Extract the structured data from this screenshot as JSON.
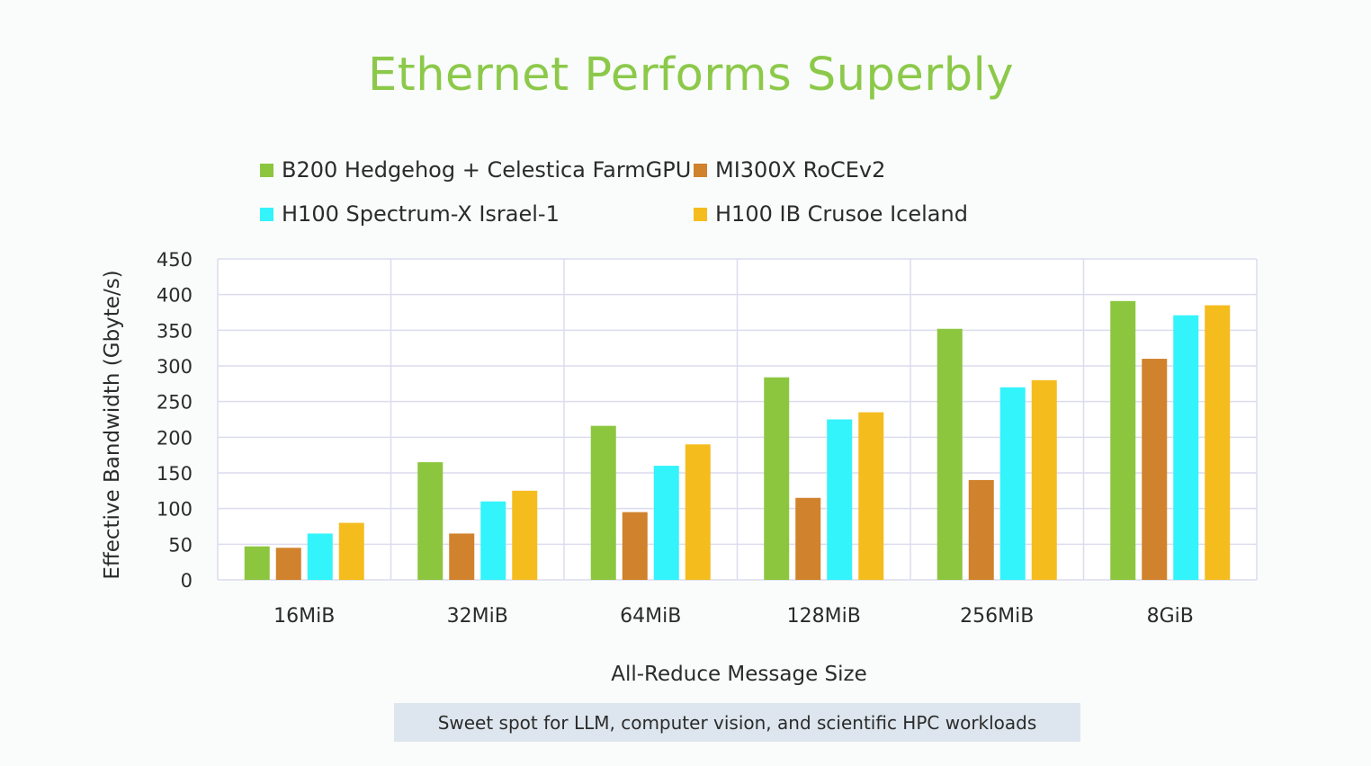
{
  "slide": {
    "title": "Ethernet Performs Superbly",
    "footnote": "Sweet spot for LLM, computer vision, and scientific HPC workloads"
  },
  "chart_data": {
    "type": "bar",
    "title": "",
    "xlabel": "All-Reduce Message Size",
    "ylabel": "Effective Bandwidth (Gbyte/s)",
    "ylim": [
      0,
      450
    ],
    "yticks": [
      0,
      50,
      100,
      150,
      200,
      250,
      300,
      350,
      400,
      450
    ],
    "grid": true,
    "legend_position": "top",
    "categories": [
      "16MiB",
      "32MiB",
      "64MiB",
      "128MiB",
      "256MiB",
      "8GiB"
    ],
    "series": [
      {
        "name": "B200 Hedgehog + Celestica FarmGPU",
        "color": "#8cc63f",
        "values": [
          47,
          165,
          216,
          284,
          352,
          391
        ]
      },
      {
        "name": "MI300X RoCEv2",
        "color": "#d0822c",
        "values": [
          45,
          65,
          95,
          115,
          140,
          310
        ]
      },
      {
        "name": "H100 Spectrum-X Israel-1",
        "color": "#33f3fb",
        "values": [
          65,
          110,
          160,
          225,
          270,
          371
        ]
      },
      {
        "name": "H100 IB Crusoe Iceland",
        "color": "#f5bc1e",
        "values": [
          80,
          125,
          190,
          235,
          280,
          385
        ]
      }
    ]
  }
}
